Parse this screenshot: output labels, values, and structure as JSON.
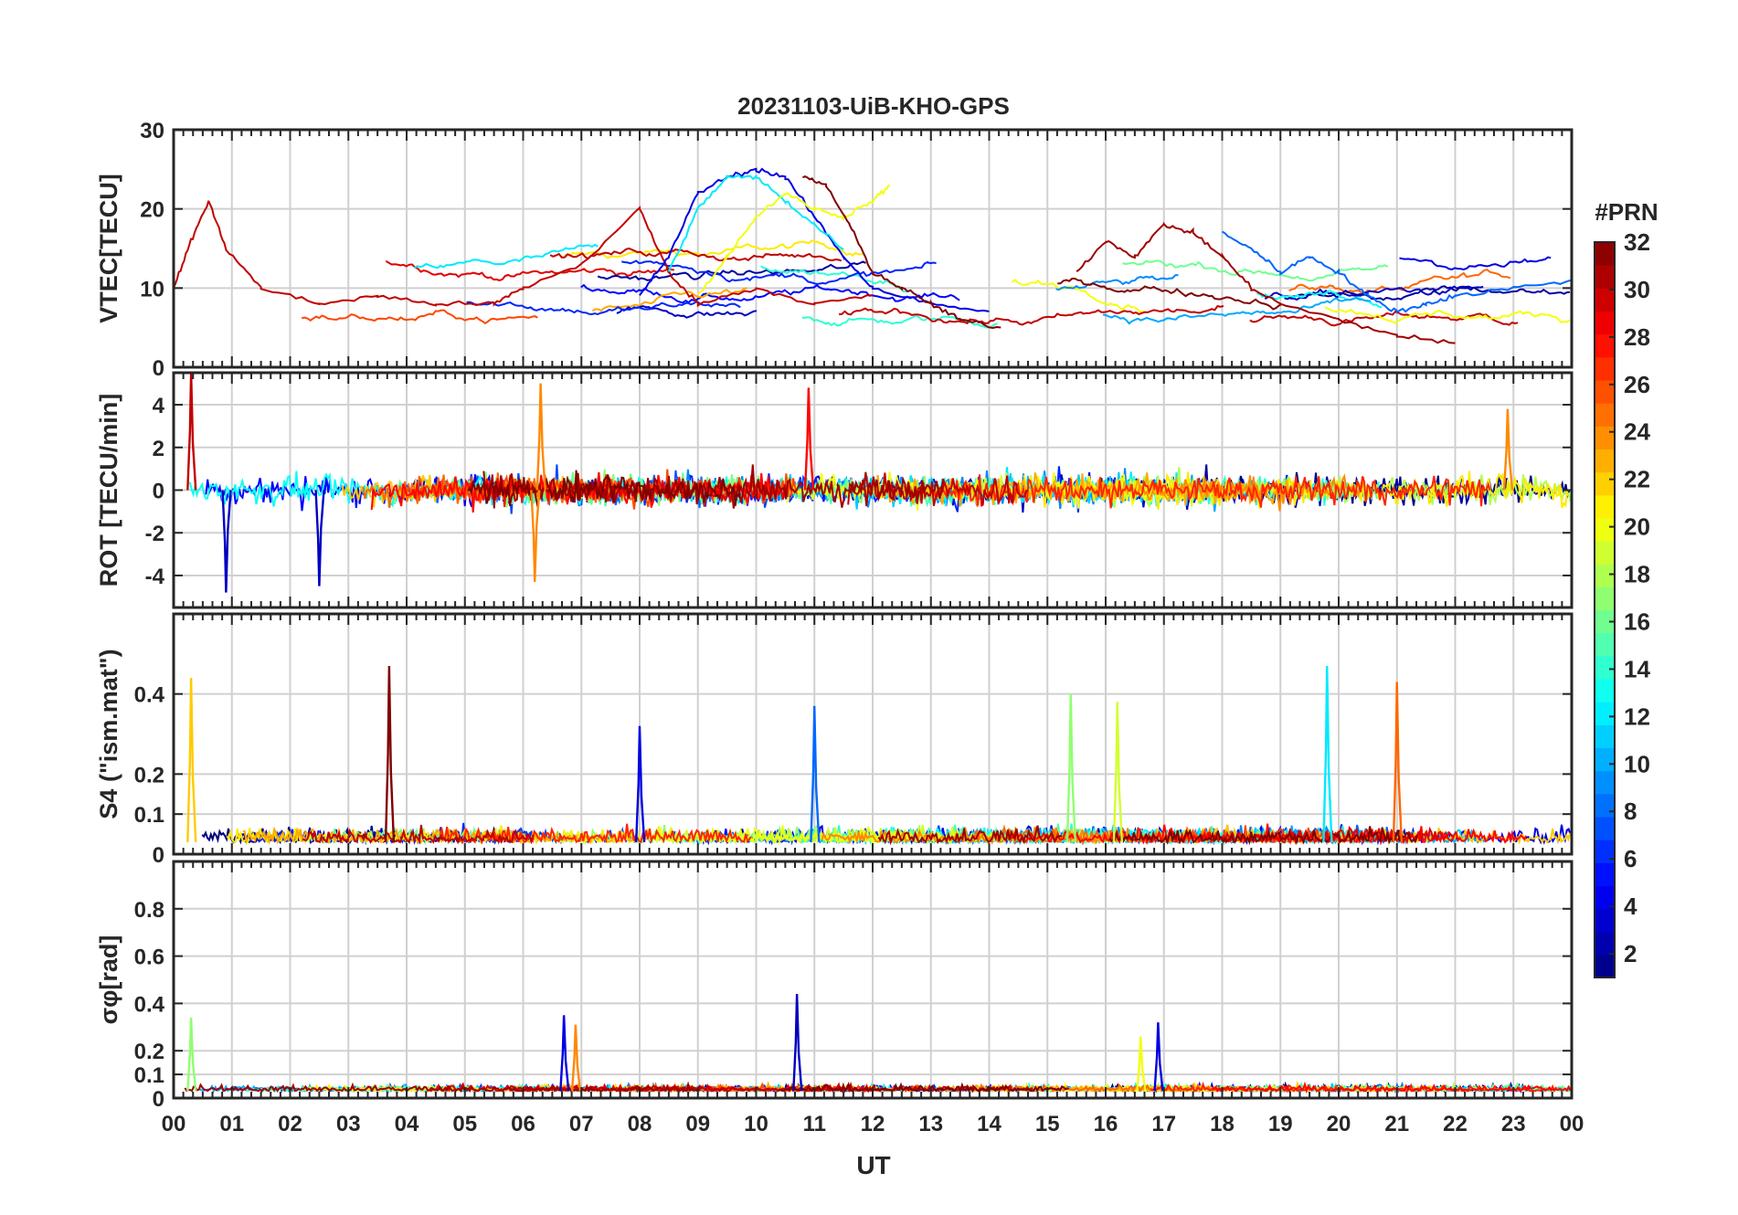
{
  "chart_data": {
    "type": "line",
    "title": "20231103-UiB-KHO-GPS",
    "xlabel": "UT",
    "x_ticks": [
      "00",
      "01",
      "02",
      "03",
      "04",
      "05",
      "06",
      "07",
      "08",
      "09",
      "10",
      "11",
      "12",
      "13",
      "14",
      "15",
      "16",
      "17",
      "18",
      "19",
      "20",
      "21",
      "22",
      "23",
      "00"
    ],
    "xlim_hours": [
      0,
      24
    ],
    "colorbar": {
      "title": "#PRN",
      "range": [
        1,
        32
      ],
      "ticks": [
        "2",
        "4",
        "6",
        "8",
        "10",
        "12",
        "14",
        "16",
        "18",
        "20",
        "22",
        "24",
        "26",
        "28",
        "30",
        "32"
      ],
      "colormap": "jet"
    },
    "panels": [
      {
        "id": "vtec",
        "ylabel": "VTEC[TECU]",
        "ylim": [
          0,
          30
        ],
        "yticks": [
          "0",
          "10",
          "20",
          "30"
        ],
        "representative_series": [
          {
            "prn": 30,
            "x": [
              0,
              0.3,
              0.6,
              0.9,
              1.5,
              2.5,
              3.5,
              4.5,
              5.5,
              6,
              7,
              8,
              8.5,
              9,
              10,
              11,
              12
            ],
            "y": [
              10,
              16,
              21,
              15,
              10,
              8,
              9,
              8,
              8,
              10,
              13,
              20,
              12,
              8,
              10,
              8,
              9
            ]
          },
          {
            "prn": 4,
            "x": [
              8,
              8.5,
              9,
              9.5,
              10,
              10.5,
              11,
              11.5,
              12,
              13,
              14
            ],
            "y": [
              9,
              14,
              22,
              24,
              25,
              24,
              19,
              14,
              10,
              8,
              7
            ]
          },
          {
            "prn": 12,
            "x": [
              8.5,
              9,
              9.5,
              10,
              10.5,
              11,
              11.5
            ],
            "y": [
              12,
              20,
              24,
              24,
              21,
              18,
              15
            ]
          },
          {
            "prn": 20,
            "x": [
              9,
              9.5,
              10,
              10.5,
              11,
              11.5,
              12,
              12.3
            ],
            "y": [
              9,
              14,
              19,
              22,
              20,
              19,
              21,
              23
            ]
          },
          {
            "prn": 32,
            "x": [
              10.8,
              11.2,
              11.6,
              12,
              12.5,
              13,
              13.5,
              14.2
            ],
            "y": [
              24,
              23,
              18,
              12,
              10,
              8,
              6,
              5
            ]
          },
          {
            "prn": 31,
            "x": [
              15.5,
              16,
              16.5,
              17,
              17.5,
              18,
              18.5,
              19,
              20,
              21,
              22
            ],
            "y": [
              12,
              16,
              14,
              18,
              17,
              14,
              10,
              8,
              6,
              4,
              3
            ]
          },
          {
            "prn": 8,
            "x": [
              18,
              18.5,
              19,
              19.5,
              20,
              20.5,
              21,
              21.5,
              22,
              23,
              24
            ],
            "y": [
              17,
              15,
              12,
              14,
              12,
              9,
              7,
              8,
              9,
              10,
              11
            ]
          }
        ]
      },
      {
        "id": "rot",
        "ylabel": "ROT [TECU/min]",
        "ylim": [
          -5.5,
          5.5
        ],
        "yticks": [
          "-4",
          "-2",
          "0",
          "2",
          "4"
        ],
        "notable_spikes": [
          {
            "prn": 30,
            "x": 0.3,
            "y": 5.5
          },
          {
            "prn": 3,
            "x": 0.9,
            "y": -4.8
          },
          {
            "prn": 3,
            "x": 2.5,
            "y": -4.5
          },
          {
            "prn": 24,
            "x": 6.3,
            "y": 5.0
          },
          {
            "prn": 24,
            "x": 6.2,
            "y": -4.3
          },
          {
            "prn": 28,
            "x": 10.9,
            "y": 4.8
          },
          {
            "prn": 24,
            "x": 22.9,
            "y": 3.8
          }
        ]
      },
      {
        "id": "s4",
        "ylabel": "S4 (\"ism.mat\")",
        "ylim": [
          0,
          0.6
        ],
        "yticks": [
          "0",
          "0.1",
          "0.2",
          "0.4"
        ],
        "notable_peaks": [
          {
            "prn": 22,
            "x": 0.3,
            "y": 0.44
          },
          {
            "prn": 32,
            "x": 3.7,
            "y": 0.47
          },
          {
            "prn": 8,
            "x": 11.0,
            "y": 0.37
          },
          {
            "prn": 17,
            "x": 15.4,
            "y": 0.4
          },
          {
            "prn": 19,
            "x": 16.2,
            "y": 0.38
          },
          {
            "prn": 12,
            "x": 19.8,
            "y": 0.47
          },
          {
            "prn": 25,
            "x": 21.0,
            "y": 0.43
          },
          {
            "prn": 4,
            "x": 8.0,
            "y": 0.32
          }
        ]
      },
      {
        "id": "sigma_phi",
        "ylabel": "σφ[rad]",
        "ylim": [
          0,
          1.0
        ],
        "yticks": [
          "0",
          "0.1",
          "0.2",
          "0.4",
          "0.6",
          "0.8"
        ],
        "notable_peaks": [
          {
            "prn": 17,
            "x": 0.3,
            "y": 0.34
          },
          {
            "prn": 4,
            "x": 6.7,
            "y": 0.35
          },
          {
            "prn": 24,
            "x": 6.9,
            "y": 0.31
          },
          {
            "prn": 3,
            "x": 10.7,
            "y": 0.44
          },
          {
            "prn": 4,
            "x": 16.9,
            "y": 0.32
          },
          {
            "prn": 20,
            "x": 16.6,
            "y": 0.26
          }
        ]
      }
    ]
  }
}
